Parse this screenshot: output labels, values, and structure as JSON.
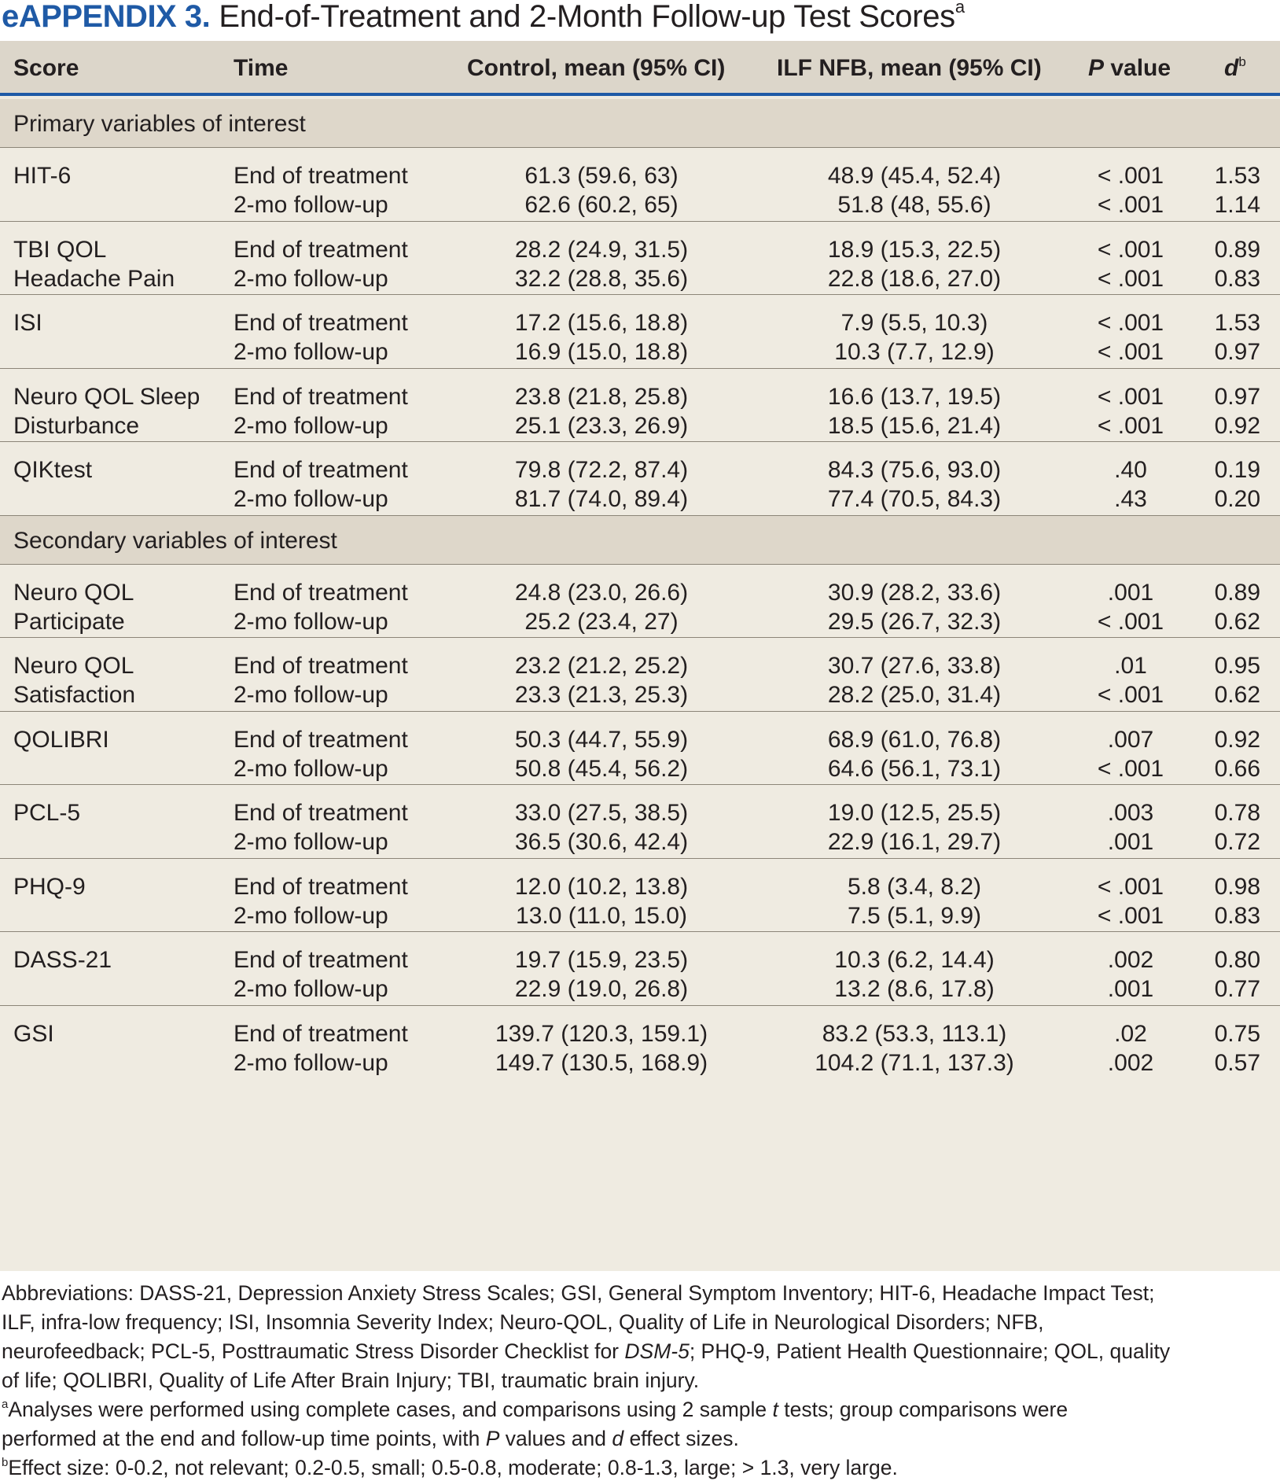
{
  "title": {
    "label": "eAPPENDIX 3.",
    "text": "End-of-Treatment and 2-Month Follow-up Test Scores",
    "sup": "a"
  },
  "header": {
    "score": "Score",
    "time": "Time",
    "control": "Control, mean (95% CI)",
    "ilf": "ILF NFB, mean (95% CI)",
    "p_italic": "P",
    "p_rest": " value",
    "d": "d",
    "d_sup": "b"
  },
  "sections": {
    "primary": "Primary variables of interest",
    "secondary": "Secondary variables of interest"
  },
  "rows": [
    {
      "score": [
        "HIT-6",
        ""
      ],
      "time": [
        "End of treatment",
        "2-mo follow-up"
      ],
      "control": [
        "61.3 (59.6, 63)",
        "62.6 (60.2, 65)"
      ],
      "ilf": [
        "48.9 (45.4, 52.4)",
        "51.8 (48, 55.6)"
      ],
      "p": [
        "< .001",
        "< .001"
      ],
      "d": [
        "1.53",
        "1.14"
      ]
    },
    {
      "score": [
        "TBI QOL",
        "Headache Pain"
      ],
      "time": [
        "End of treatment",
        "2-mo follow-up"
      ],
      "control": [
        "28.2 (24.9, 31.5)",
        "32.2 (28.8, 35.6)"
      ],
      "ilf": [
        "18.9 (15.3, 22.5)",
        "22.8 (18.6, 27.0)"
      ],
      "p": [
        "< .001",
        "< .001"
      ],
      "d": [
        "0.89",
        "0.83"
      ]
    },
    {
      "score": [
        "ISI",
        ""
      ],
      "time": [
        "End of treatment",
        "2-mo follow-up"
      ],
      "control": [
        "17.2 (15.6, 18.8)",
        "16.9 (15.0, 18.8)"
      ],
      "ilf": [
        "7.9 (5.5, 10.3)",
        "10.3 (7.7, 12.9)"
      ],
      "p": [
        "< .001",
        "< .001"
      ],
      "d": [
        "1.53",
        "0.97"
      ]
    },
    {
      "score": [
        "Neuro QOL Sleep",
        "Disturbance"
      ],
      "time": [
        "End of treatment",
        "2-mo follow-up"
      ],
      "control": [
        "23.8 (21.8, 25.8)",
        "25.1 (23.3, 26.9)"
      ],
      "ilf": [
        "16.6 (13.7, 19.5)",
        "18.5 (15.6, 21.4)"
      ],
      "p": [
        "< .001",
        "< .001"
      ],
      "d": [
        "0.97",
        "0.92"
      ]
    },
    {
      "score": [
        "QIKtest",
        ""
      ],
      "time": [
        "End of treatment",
        "2-mo follow-up"
      ],
      "control": [
        "79.8 (72.2, 87.4)",
        "81.7 (74.0, 89.4)"
      ],
      "ilf": [
        "84.3 (75.6, 93.0)",
        "77.4 (70.5, 84.3)"
      ],
      "p": [
        ".40",
        ".43"
      ],
      "d": [
        "0.19",
        "0.20"
      ]
    },
    {
      "score": [
        "Neuro QOL",
        "Participate"
      ],
      "time": [
        "End of treatment",
        "2-mo follow-up"
      ],
      "control": [
        "24.8 (23.0, 26.6)",
        "25.2 (23.4, 27)"
      ],
      "ilf": [
        "30.9 (28.2, 33.6)",
        "29.5 (26.7, 32.3)"
      ],
      "p": [
        ".001",
        "< .001"
      ],
      "d": [
        "0.89",
        "0.62"
      ]
    },
    {
      "score": [
        "Neuro QOL",
        "Satisfaction"
      ],
      "time": [
        "End of treatment",
        "2-mo follow-up"
      ],
      "control": [
        "23.2 (21.2, 25.2)",
        "23.3 (21.3, 25.3)"
      ],
      "ilf": [
        "30.7 (27.6, 33.8)",
        "28.2 (25.0, 31.4)"
      ],
      "p": [
        ".01",
        "< .001"
      ],
      "d": [
        "0.95",
        "0.62"
      ]
    },
    {
      "score": [
        "QOLIBRI",
        ""
      ],
      "time": [
        "End of treatment",
        "2-mo follow-up"
      ],
      "control": [
        "50.3 (44.7, 55.9)",
        "50.8 (45.4, 56.2)"
      ],
      "ilf": [
        "68.9 (61.0, 76.8)",
        "64.6 (56.1, 73.1)"
      ],
      "p": [
        ".007",
        "< .001"
      ],
      "d": [
        "0.92",
        "0.66"
      ]
    },
    {
      "score": [
        "PCL-5",
        ""
      ],
      "time": [
        "End of treatment",
        "2-mo follow-up"
      ],
      "control": [
        "33.0 (27.5, 38.5)",
        "36.5 (30.6, 42.4)"
      ],
      "ilf": [
        "19.0 (12.5, 25.5)",
        "22.9 (16.1, 29.7)"
      ],
      "p": [
        ".003",
        ".001"
      ],
      "d": [
        "0.78",
        "0.72"
      ]
    },
    {
      "score": [
        "PHQ-9",
        ""
      ],
      "time": [
        "End of treatment",
        "2-mo follow-up"
      ],
      "control": [
        "12.0 (10.2, 13.8)",
        "13.0 (11.0, 15.0)"
      ],
      "ilf": [
        "5.8 (3.4, 8.2)",
        "7.5 (5.1, 9.9)"
      ],
      "p": [
        "< .001",
        "< .001"
      ],
      "d": [
        "0.98",
        "0.83"
      ]
    },
    {
      "score": [
        "DASS-21",
        ""
      ],
      "time": [
        "End of treatment",
        "2-mo follow-up"
      ],
      "control": [
        "19.7 (15.9, 23.5)",
        "22.9 (19.0, 26.8)"
      ],
      "ilf": [
        "10.3 (6.2, 14.4)",
        "13.2 (8.6, 17.8)"
      ],
      "p": [
        ".002",
        ".001"
      ],
      "d": [
        "0.80",
        "0.77"
      ]
    },
    {
      "score": [
        "GSI",
        ""
      ],
      "time": [
        "End of treatment",
        "2-mo follow-up"
      ],
      "control": [
        "139.7 (120.3, 159.1)",
        "149.7 (130.5, 168.9)"
      ],
      "ilf": [
        "83.2 (53.3, 113.1)",
        "104.2 (71.1, 137.3)"
      ],
      "p": [
        ".02",
        ".002"
      ],
      "d": [
        "0.75",
        "0.57"
      ]
    }
  ],
  "footnotes": {
    "abbr_1": "Abbreviations: DASS-21, Depression Anxiety Stress Scales; GSI, General Symptom Inventory; HIT-6, Headache Impact Test;",
    "abbr_2": "ILF, infra-low frequency; ISI, Insomnia Severity Index; Neuro-QOL, Quality of Life in Neurological Disorders; NFB,",
    "abbr_3a": "neurofeedback; PCL-5, Posttraumatic Stress Disorder Checklist for ",
    "abbr_3b": "DSM-5",
    "abbr_3c": "; PHQ-9, Patient Health Questionnaire; QOL, quality",
    "abbr_4": "of life; QOLIBRI, Quality of Life After Brain Injury; TBI, traumatic brain injury.",
    "a_sup": "a",
    "a_1a": "Analyses were performed using complete cases, and comparisons using 2 sample ",
    "a_1b": "t",
    "a_1c": " tests; group comparisons were",
    "a_2a": "performed at the end and follow-up time points, with ",
    "a_2b": "P",
    "a_2c": " values and ",
    "a_2d": "d",
    "a_2e": " effect sizes.",
    "b_sup": "b",
    "b_1": "Effect size: 0-0.2, not relevant; 0.2-0.5, small; 0.5-0.8, moderate; 0.8-1.3, large; > 1.3, very large."
  }
}
